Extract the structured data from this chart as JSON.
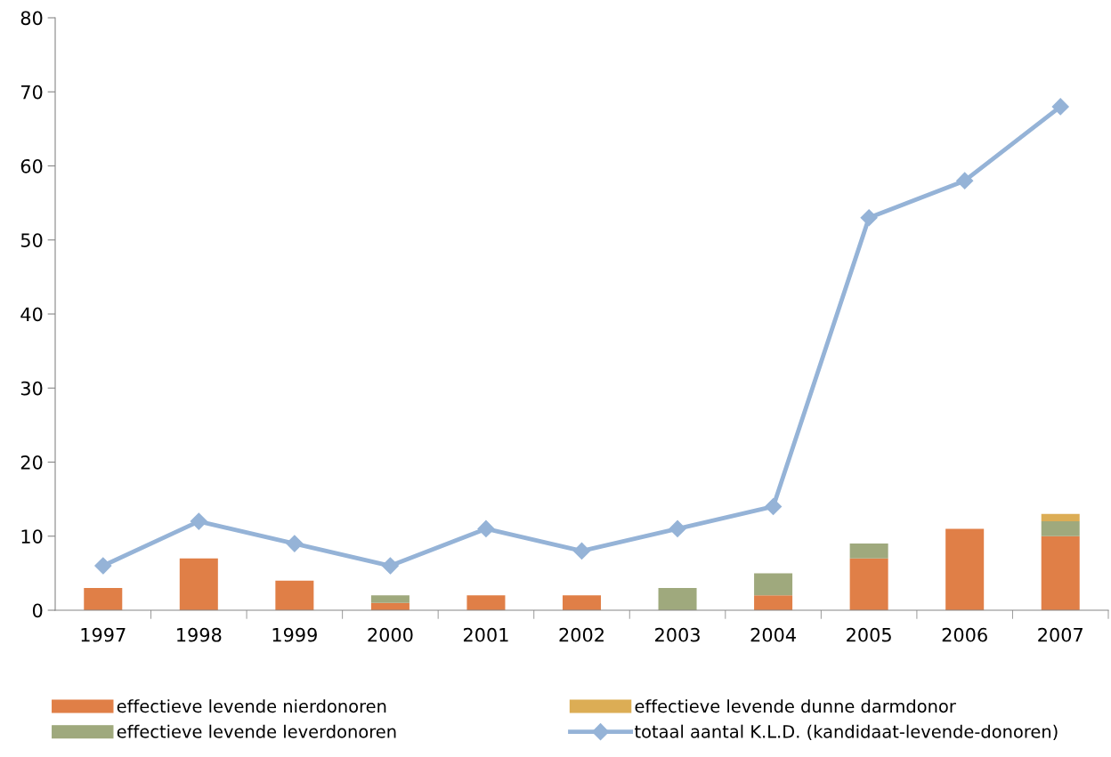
{
  "chart_data": {
    "type": "bar",
    "stacked": true,
    "categories": [
      "1997",
      "1998",
      "1999",
      "2000",
      "2001",
      "2002",
      "2003",
      "2004",
      "2005",
      "2006",
      "2007"
    ],
    "series": [
      {
        "name": "effectieve levende nierdonoren",
        "color": "#e07f47",
        "values": [
          3,
          7,
          4,
          1,
          2,
          2,
          0,
          2,
          7,
          11,
          10
        ]
      },
      {
        "name": "effectieve levende leverdonoren",
        "color": "#9fa97d",
        "values": [
          0,
          0,
          0,
          1,
          0,
          0,
          3,
          3,
          2,
          0,
          2
        ]
      },
      {
        "name": "effectieve levende dunne darmdonor",
        "color": "#dcad55",
        "values": [
          0,
          0,
          0,
          0,
          0,
          0,
          0,
          0,
          0,
          0,
          1
        ]
      },
      {
        "name": "totaal aantal K.L.D. (kandidaat-levende-donoren)",
        "type": "line",
        "color": "#95b3d7",
        "marker": "diamond",
        "values": [
          6,
          12,
          9,
          6,
          11,
          8,
          11,
          14,
          53,
          58,
          68
        ]
      }
    ],
    "ylim": [
      0,
      80
    ],
    "yticks": [
      0,
      10,
      20,
      30,
      40,
      50,
      60,
      70,
      80
    ],
    "grid": false,
    "legend": "bottom"
  }
}
